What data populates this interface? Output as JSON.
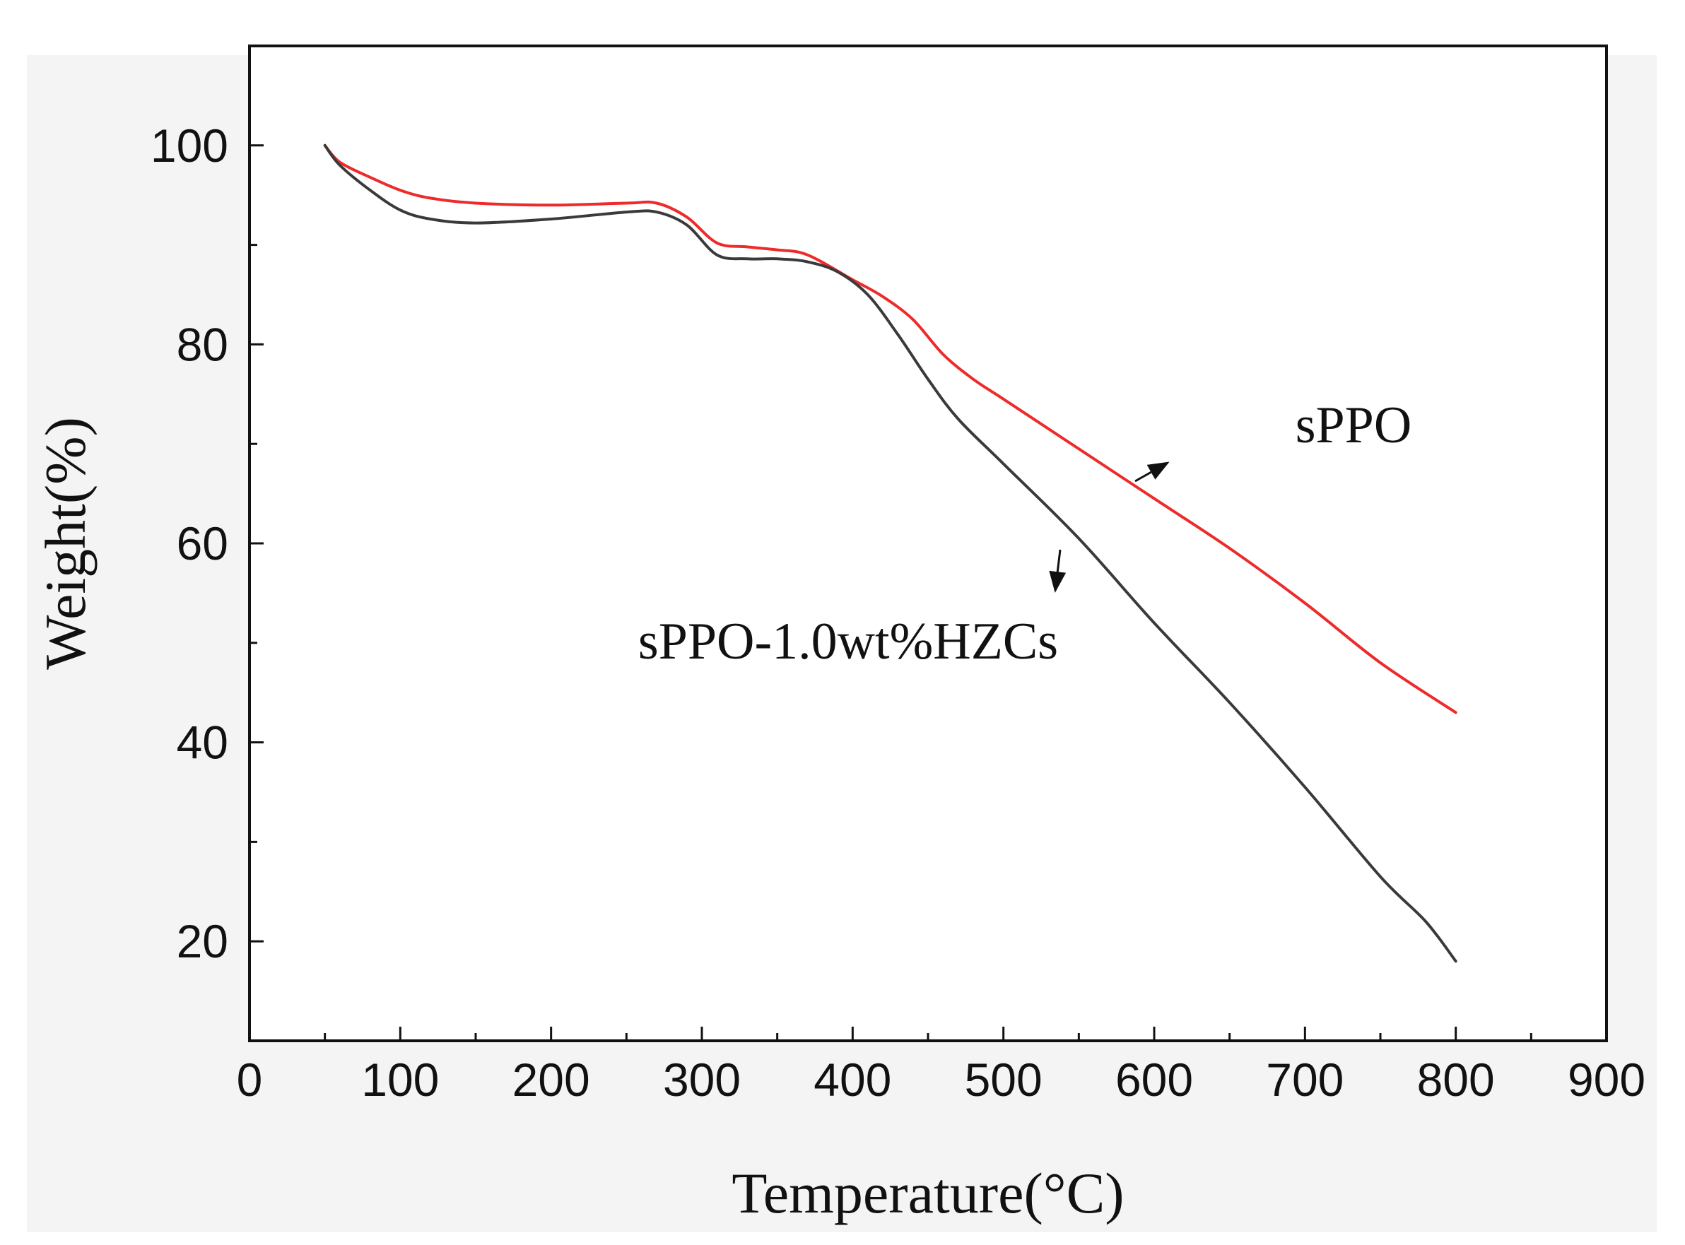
{
  "chart_data": {
    "type": "line",
    "title": "",
    "xlabel": "Temperature(°C)",
    "ylabel": "Weight(%)",
    "xlim": [
      0,
      900
    ],
    "ylim": [
      10,
      110
    ],
    "x_ticks": [
      0,
      100,
      200,
      300,
      400,
      500,
      600,
      700,
      800,
      900
    ],
    "y_ticks": [
      20,
      40,
      60,
      80,
      100
    ],
    "grid": false,
    "colors": {
      "sPPO": "#ee2a2a",
      "sPPO-1.0wt%HZCs": "#3a3a3a",
      "axis": "#111111"
    },
    "series": [
      {
        "name": "sPPO",
        "color": "#ee2a2a",
        "x": [
          50,
          60,
          80,
          100,
          120,
          150,
          200,
          250,
          270,
          290,
          310,
          330,
          350,
          370,
          400,
          420,
          440,
          460,
          480,
          500,
          550,
          600,
          650,
          700,
          750,
          800
        ],
        "y": [
          100,
          98.3,
          96.8,
          95.5,
          94.7,
          94.2,
          94.0,
          94.2,
          94.2,
          92.8,
          90.2,
          89.8,
          89.5,
          89.0,
          86.5,
          84.8,
          82.5,
          79.0,
          76.5,
          74.5,
          69.5,
          64.5,
          59.5,
          54.0,
          48.0,
          43.0
        ]
      },
      {
        "name": "sPPO-1.0wt%HZCs",
        "color": "#3a3a3a",
        "x": [
          50,
          60,
          80,
          100,
          120,
          150,
          200,
          250,
          270,
          290,
          310,
          330,
          350,
          370,
          390,
          410,
          430,
          450,
          470,
          500,
          550,
          600,
          650,
          700,
          750,
          780,
          800
        ],
        "y": [
          100,
          98.0,
          95.5,
          93.5,
          92.6,
          92.2,
          92.6,
          93.3,
          93.3,
          92.0,
          89.0,
          88.6,
          88.6,
          88.3,
          87.3,
          85.0,
          81.0,
          76.5,
          72.5,
          68.0,
          60.5,
          52.0,
          44.0,
          35.5,
          26.5,
          22.0,
          18.0
        ]
      }
    ],
    "annotations": [
      {
        "text": "sPPO",
        "series": "sPPO"
      },
      {
        "text": "sPPO-1.0wt%HZCs",
        "series": "sPPO-1.0wt%HZCs"
      }
    ]
  }
}
